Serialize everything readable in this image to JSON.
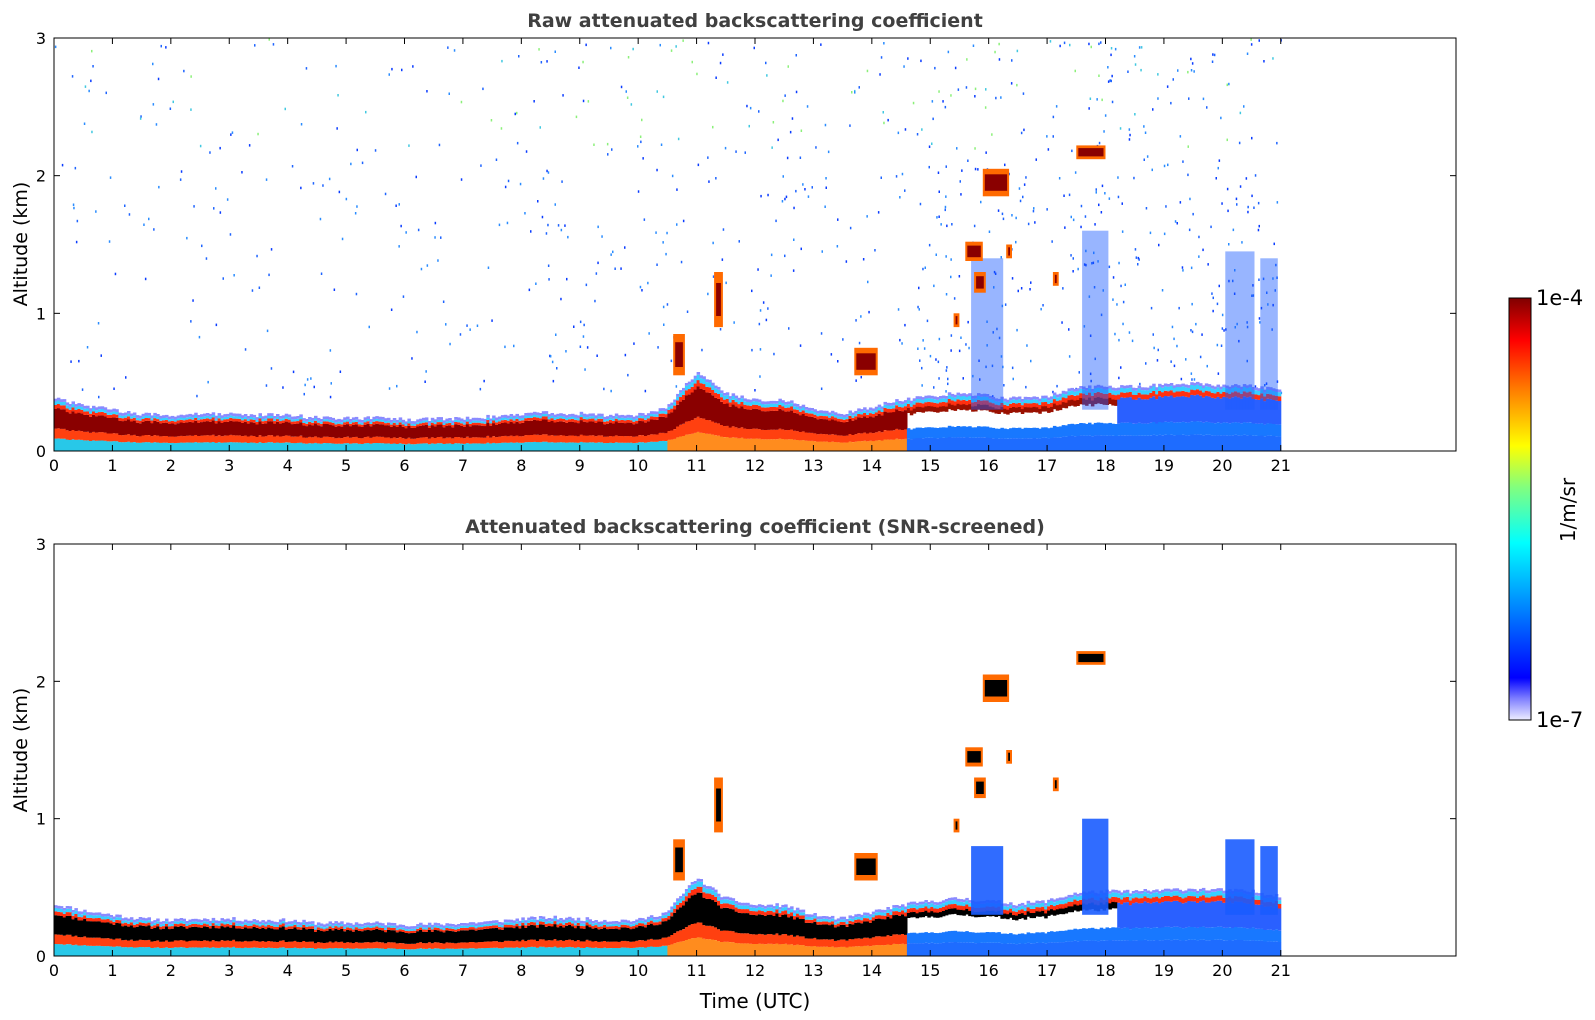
{
  "chart_data": [
    {
      "type": "heatmap",
      "title": "Raw attenuated backscattering coefficient",
      "xlabel": "",
      "ylabel": "Altitude (km)",
      "xlim": [
        0,
        24
      ],
      "ylim": [
        0,
        3
      ],
      "xticks": [
        "0",
        "1",
        "2",
        "3",
        "4",
        "5",
        "6",
        "7",
        "8",
        "9",
        "10",
        "11",
        "12",
        "13",
        "14",
        "15",
        "16",
        "17",
        "18",
        "19",
        "20",
        "21"
      ],
      "yticks": [
        "0",
        "1",
        "2",
        "3"
      ],
      "data_end_time": 21,
      "grid": false,
      "layer_top_km": [
        [
          0,
          0.36
        ],
        [
          0.5,
          0.31
        ],
        [
          1,
          0.28
        ],
        [
          1.5,
          0.25
        ],
        [
          2,
          0.24
        ],
        [
          2.5,
          0.25
        ],
        [
          3,
          0.25
        ],
        [
          3.5,
          0.24
        ],
        [
          4,
          0.24
        ],
        [
          4.5,
          0.22
        ],
        [
          5,
          0.22
        ],
        [
          5.5,
          0.22
        ],
        [
          6,
          0.21
        ],
        [
          6.5,
          0.21
        ],
        [
          7,
          0.22
        ],
        [
          7.5,
          0.23
        ],
        [
          8,
          0.25
        ],
        [
          8.5,
          0.26
        ],
        [
          9,
          0.25
        ],
        [
          9.5,
          0.24
        ],
        [
          10,
          0.24
        ],
        [
          10.5,
          0.3
        ],
        [
          11,
          0.55
        ],
        [
          11.5,
          0.4
        ],
        [
          12,
          0.35
        ],
        [
          12.5,
          0.35
        ],
        [
          13,
          0.28
        ],
        [
          13.5,
          0.25
        ],
        [
          14,
          0.3
        ],
        [
          14.5,
          0.35
        ],
        [
          15,
          0.38
        ],
        [
          15.5,
          0.4
        ],
        [
          16,
          0.38
        ],
        [
          16.5,
          0.36
        ],
        [
          17,
          0.38
        ],
        [
          17.5,
          0.44
        ],
        [
          18,
          0.45
        ],
        [
          18.5,
          0.45
        ],
        [
          19,
          0.46
        ],
        [
          19.5,
          0.47
        ],
        [
          20,
          0.46
        ],
        [
          20.5,
          0.45
        ],
        [
          21,
          0.42
        ]
      ],
      "elevated_layers": [
        {
          "t0": 10.6,
          "t1": 10.8,
          "z0": 0.55,
          "z1": 0.85
        },
        {
          "t0": 11.3,
          "t1": 11.45,
          "z0": 0.9,
          "z1": 1.3
        },
        {
          "t0": 13.7,
          "t1": 14.1,
          "z0": 0.55,
          "z1": 0.75
        },
        {
          "t0": 15.4,
          "t1": 15.5,
          "z0": 0.9,
          "z1": 1.0
        },
        {
          "t0": 15.6,
          "t1": 15.9,
          "z0": 1.38,
          "z1": 1.52
        },
        {
          "t0": 15.75,
          "t1": 15.95,
          "z0": 1.15,
          "z1": 1.3
        },
        {
          "t0": 15.9,
          "t1": 16.35,
          "z0": 1.85,
          "z1": 2.05
        },
        {
          "t0": 16.3,
          "t1": 16.4,
          "z0": 1.4,
          "z1": 1.5
        },
        {
          "t0": 17.1,
          "t1": 17.2,
          "z0": 1.2,
          "z1": 1.3
        },
        {
          "t0": 17.5,
          "t1": 18.0,
          "z0": 2.12,
          "z1": 2.22
        }
      ]
    },
    {
      "type": "heatmap",
      "title": "Attenuated backscattering coefficient (SNR-screened)",
      "xlabel": "Time (UTC)",
      "ylabel": "Altitude (km)",
      "xlim": [
        0,
        24
      ],
      "ylim": [
        0,
        3
      ],
      "xticks": [
        "0",
        "1",
        "2",
        "3",
        "4",
        "5",
        "6",
        "7",
        "8",
        "9",
        "10",
        "11",
        "12",
        "13",
        "14",
        "15",
        "16",
        "17",
        "18",
        "19",
        "20",
        "21"
      ],
      "yticks": [
        "0",
        "1",
        "2",
        "3"
      ],
      "data_end_time": 21,
      "grid": false
    }
  ],
  "colorbar": {
    "max_label": "1e-4",
    "min_label": "1e-7",
    "label": "1/m/sr",
    "colormap": "jet",
    "colors": [
      "#e6e6f5",
      "#0000ff",
      "#00bfff",
      "#00ff80",
      "#ffff00",
      "#ff7f00",
      "#ff0000",
      "#7f0000"
    ]
  }
}
